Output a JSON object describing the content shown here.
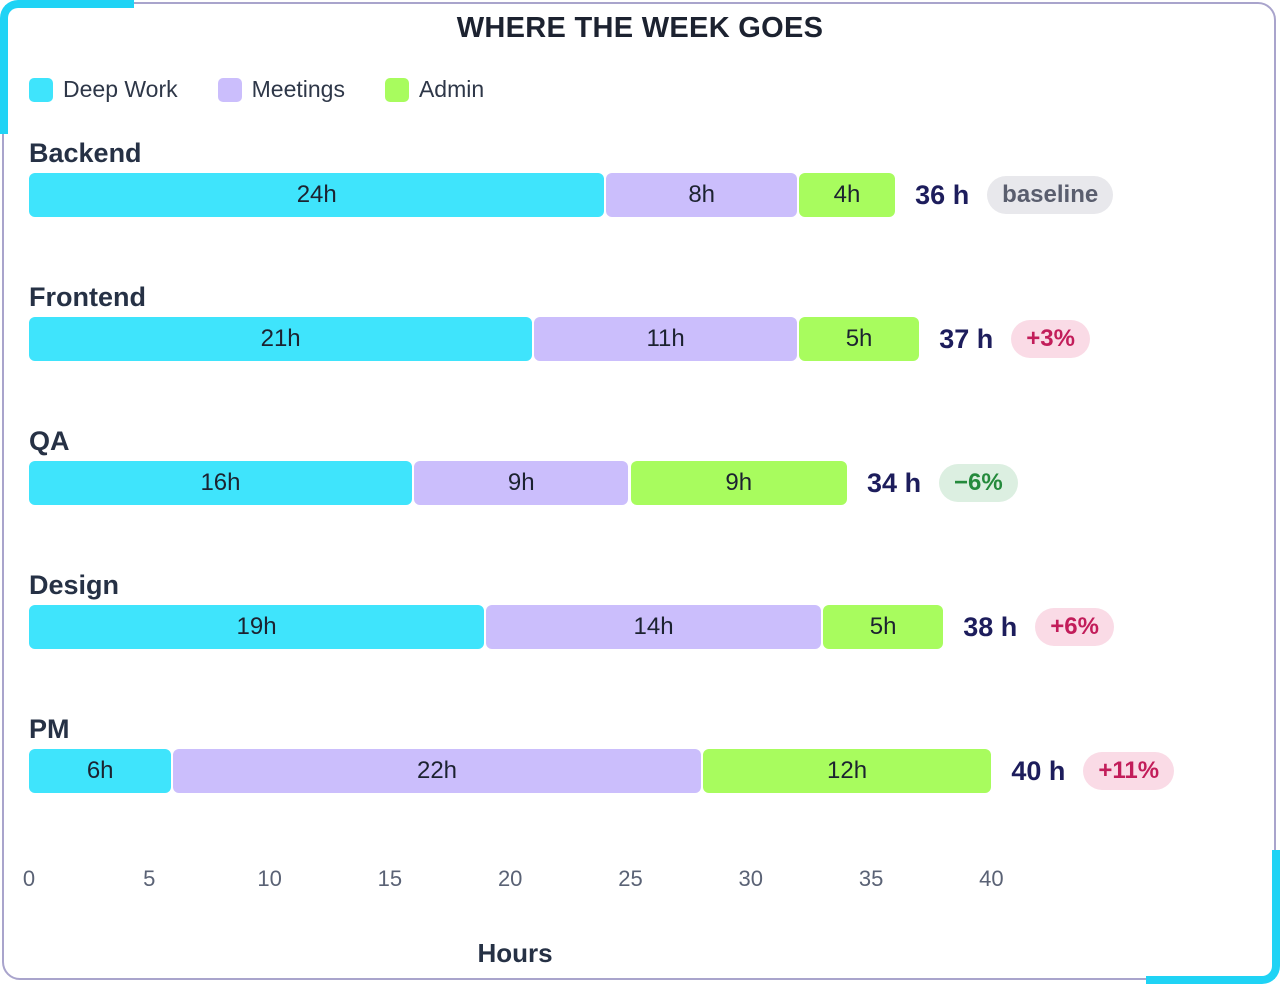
{
  "colors": {
    "deep_work": "#3fe4fc",
    "meetings": "#cbbefc",
    "admin": "#a8fc5e"
  },
  "chart_data": {
    "type": "bar",
    "orientation": "horizontal",
    "stacked": true,
    "title": "WHERE THE WEEK GOES",
    "xlabel": "Hours",
    "ylabel": "",
    "xlim": [
      0,
      40
    ],
    "xticks": [
      0,
      5,
      10,
      15,
      20,
      25,
      30,
      35,
      40
    ],
    "grid": false,
    "legend": "top-left",
    "categories": [
      "Backend",
      "Frontend",
      "QA",
      "Design",
      "PM"
    ],
    "series": [
      {
        "name": "Deep Work",
        "color": "#3fe4fc",
        "values": [
          24,
          21,
          16,
          19,
          6
        ],
        "labels": [
          "24h",
          "21h",
          "16h",
          "19h",
          "6h"
        ]
      },
      {
        "name": "Meetings",
        "color": "#cbbefc",
        "values": [
          8,
          11,
          9,
          14,
          22
        ],
        "labels": [
          "8h",
          "11h",
          "9h",
          "14h",
          "22h"
        ]
      },
      {
        "name": "Admin",
        "color": "#a8fc5e",
        "values": [
          4,
          5,
          9,
          5,
          12
        ],
        "labels": [
          "4h",
          "5h",
          "9h",
          "5h",
          "12h"
        ]
      }
    ],
    "totals": [
      36,
      37,
      34,
      38,
      40
    ],
    "total_labels": [
      "36 h",
      "37 h",
      "34 h",
      "38 h",
      "40 h"
    ],
    "badges": [
      {
        "text": "baseline",
        "kind": "neutral"
      },
      {
        "text": "+3%",
        "kind": "up"
      },
      {
        "text": "−6%",
        "kind": "down"
      },
      {
        "text": "+6%",
        "kind": "up"
      },
      {
        "text": "+11%",
        "kind": "up"
      }
    ]
  }
}
